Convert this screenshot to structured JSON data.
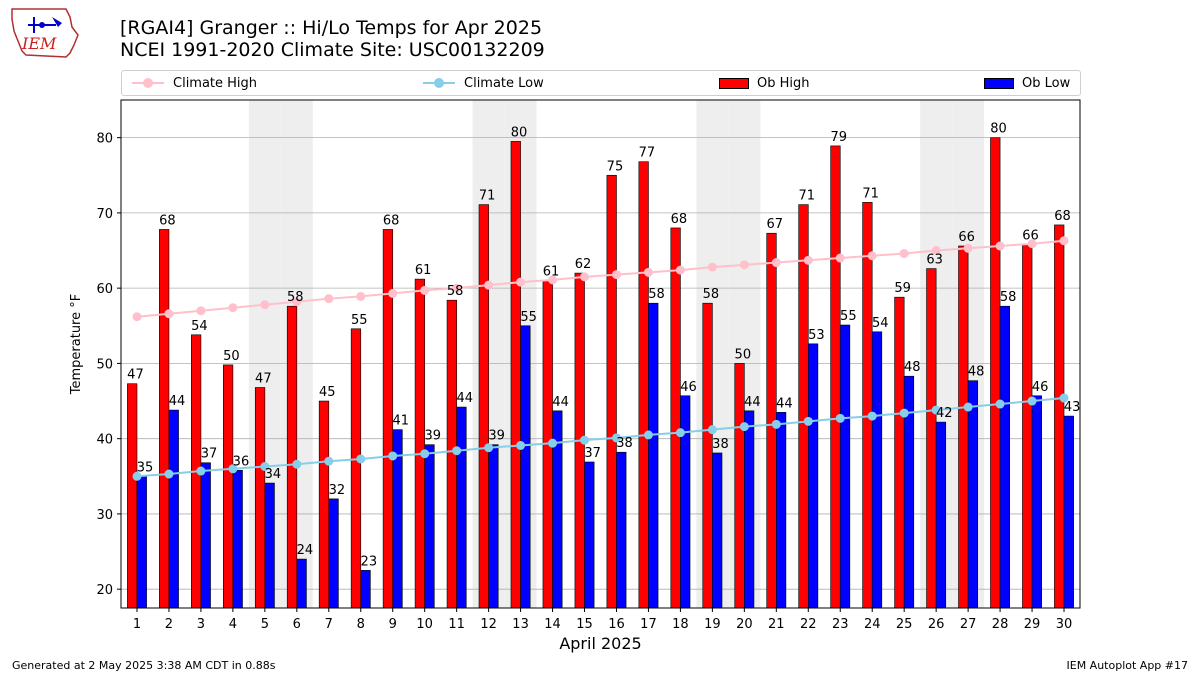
{
  "title_line1": "[RGAI4] Granger :: Hi/Lo Temps for Apr 2025",
  "title_line2": "NCEI 1991-2020 Climate Site: USC00132209",
  "logo_text": "IEM",
  "legend": {
    "climate_high": "Climate High",
    "climate_low": "Climate Low",
    "ob_high": "Ob High",
    "ob_low": "Ob Low"
  },
  "colors": {
    "ob_high": "#ff0000",
    "ob_low": "#0000ff",
    "climate_high": "#ffc0cb",
    "climate_low": "#87ceeb",
    "weekend_shade": "#eeeeee",
    "grid": "#b0b0b0"
  },
  "footer_left": "Generated at 2 May 2025 3:38 AM CDT in 0.88s",
  "footer_right": "IEM Autoplot App #17",
  "chart_data": {
    "type": "bar",
    "xlabel": "April 2025",
    "ylabel": "Temperature °F",
    "ylim": [
      17.5,
      85
    ],
    "yticks": [
      20,
      30,
      40,
      50,
      60,
      70,
      80
    ],
    "grid": "horizontal",
    "legend_position": "top",
    "categories": [
      "1",
      "2",
      "3",
      "4",
      "5",
      "6",
      "7",
      "8",
      "9",
      "10",
      "11",
      "12",
      "13",
      "14",
      "15",
      "16",
      "17",
      "18",
      "19",
      "20",
      "21",
      "22",
      "23",
      "24",
      "25",
      "26",
      "27",
      "28",
      "29",
      "30"
    ],
    "shaded_days": [
      5,
      6,
      12,
      13,
      19,
      20,
      26,
      27
    ],
    "series": [
      {
        "name": "Ob High",
        "kind": "bar",
        "values": [
          47.3,
          67.8,
          53.8,
          49.8,
          46.8,
          57.6,
          45.0,
          54.6,
          67.8,
          61.2,
          58.4,
          71.1,
          79.5,
          61.0,
          62.0,
          75.0,
          76.8,
          68.0,
          58.0,
          50.0,
          67.3,
          71.1,
          78.9,
          71.4,
          58.8,
          62.6,
          65.6,
          80.0,
          65.8,
          68.4
        ],
        "labels": [
          "47",
          "68",
          "54",
          "50",
          "47",
          "58",
          "45",
          "55",
          "68",
          "61",
          "58",
          "71",
          "80",
          "61",
          "62",
          "75",
          "77",
          "68",
          "58",
          "50",
          "67",
          "71",
          "79",
          "71",
          "59",
          "63",
          "66",
          "80",
          "66",
          "68"
        ]
      },
      {
        "name": "Ob Low",
        "kind": "bar",
        "values": [
          35.0,
          43.8,
          36.8,
          35.8,
          34.1,
          24.0,
          32.0,
          22.5,
          41.2,
          39.2,
          44.2,
          39.2,
          55.0,
          43.7,
          36.9,
          38.2,
          58.0,
          45.7,
          38.1,
          43.7,
          43.5,
          52.6,
          55.1,
          54.2,
          48.3,
          42.2,
          47.7,
          57.6,
          45.7,
          43.0
        ],
        "labels": [
          "35",
          "44",
          "37",
          "36",
          "34",
          "24",
          "32",
          "23",
          "41",
          "39",
          "44",
          "39",
          "55",
          "44",
          "37",
          "38",
          "58",
          "46",
          "38",
          "44",
          "44",
          "53",
          "55",
          "54",
          "48",
          "42",
          "48",
          "58",
          "46",
          "43"
        ]
      },
      {
        "name": "Climate High",
        "kind": "line",
        "values": [
          56.2,
          56.6,
          57.0,
          57.4,
          57.8,
          58.2,
          58.6,
          58.9,
          59.3,
          59.7,
          60.0,
          60.4,
          60.8,
          61.1,
          61.5,
          61.8,
          62.1,
          62.4,
          62.8,
          63.1,
          63.4,
          63.7,
          64.0,
          64.3,
          64.6,
          65.0,
          65.3,
          65.6,
          65.9,
          66.3
        ]
      },
      {
        "name": "Climate Low",
        "kind": "line",
        "values": [
          35.0,
          35.3,
          35.7,
          36.0,
          36.3,
          36.6,
          37.0,
          37.3,
          37.7,
          38.0,
          38.4,
          38.8,
          39.1,
          39.4,
          39.8,
          40.1,
          40.5,
          40.8,
          41.2,
          41.6,
          41.9,
          42.3,
          42.7,
          43.0,
          43.4,
          43.8,
          44.2,
          44.6,
          45.0,
          45.4
        ]
      }
    ]
  }
}
